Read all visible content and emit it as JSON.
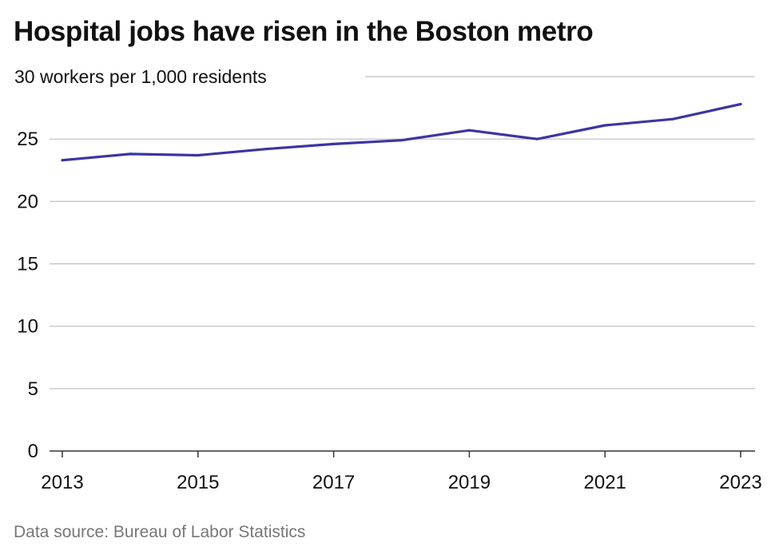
{
  "title": "Hospital jobs have risen in the Boston metro",
  "source": "Data source: Bureau of Labor Statistics",
  "colors": {
    "line": "#3b35a3",
    "grid": "#bdbdbd",
    "axis": "#333333",
    "text": "#111111",
    "source": "#777777"
  },
  "chart_data": {
    "type": "line",
    "title": "Hospital jobs have risen in the Boston metro",
    "ylabel": "workers per 1,000 residents",
    "xlabel": "",
    "x": [
      2013,
      2014,
      2015,
      2016,
      2017,
      2018,
      2019,
      2020,
      2021,
      2022,
      2023
    ],
    "series": [
      {
        "values": [
          23.3,
          23.8,
          23.7,
          24.2,
          24.6,
          24.9,
          25.7,
          25.0,
          26.1,
          26.6,
          27.8
        ]
      }
    ],
    "xlim": [
      2013,
      2023
    ],
    "ylim": [
      0,
      30
    ],
    "x_ticks": [
      2013,
      2015,
      2017,
      2019,
      2021,
      2023
    ],
    "y_ticks": [
      0,
      5,
      10,
      15,
      20,
      25,
      30
    ],
    "y_tick_labels": [
      "0",
      "5",
      "10",
      "15",
      "20",
      "25",
      "30 workers per 1,000 residents"
    ],
    "grid": true,
    "legend": "none"
  }
}
